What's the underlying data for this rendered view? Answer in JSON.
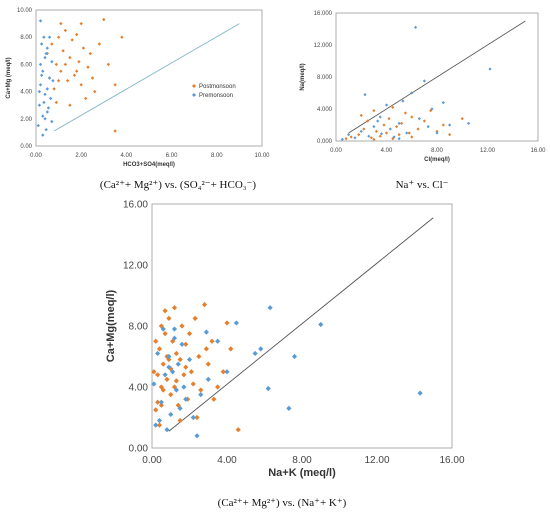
{
  "colors": {
    "postmonsoon": "#E57F2C",
    "premonsoon": "#5B9BD5",
    "line": "#555555",
    "border": "#999999"
  },
  "captions": {
    "chart1": "(Ca²⁺+ Mg²⁺) vs. (SO₄²⁻+ HCO₃⁻)",
    "chart2": "Na⁺ vs. Cl⁻",
    "chart3": "(Ca²⁺+ Mg²⁺) vs. (Na⁺+ K⁺)"
  },
  "chart_data": [
    {
      "type": "scatter",
      "title": "",
      "xlabel": "HCO3+SO4(meq/l)",
      "ylabel": "Ca+Mg (meq/l)",
      "xlim": [
        0,
        10
      ],
      "ylim": [
        0,
        10
      ],
      "xticks": [
        "0.00",
        "2.00",
        "4.00",
        "6.00",
        "8.00",
        "10.00"
      ],
      "yticks": [
        "0.00",
        "2.00",
        "4.00",
        "6.00",
        "8.00",
        "10.00"
      ],
      "legend": "right",
      "line": [
        [
          0.8,
          1.1
        ],
        [
          9,
          9
        ]
      ],
      "series": [
        {
          "name": "Postmonsoon",
          "points": [
            [
              0.5,
              6.8
            ],
            [
              0.6,
              5.0
            ],
            [
              0.7,
              7.5
            ],
            [
              0.8,
              4.2
            ],
            [
              0.9,
              6.0
            ],
            [
              1.0,
              8.0
            ],
            [
              1.1,
              5.5
            ],
            [
              1.2,
              7.0
            ],
            [
              1.3,
              8.5
            ],
            [
              1.4,
              4.8
            ],
            [
              1.5,
              6.5
            ],
            [
              1.6,
              7.8
            ],
            [
              1.7,
              5.2
            ],
            [
              1.8,
              8.2
            ],
            [
              1.9,
              6.2
            ],
            [
              2.0,
              4.5
            ],
            [
              2.1,
              7.2
            ],
            [
              2.2,
              3.5
            ],
            [
              2.3,
              5.8
            ],
            [
              2.4,
              6.8
            ],
            [
              2.6,
              4.0
            ],
            [
              2.8,
              7.5
            ],
            [
              3.0,
              9.3
            ],
            [
              3.2,
              6.0
            ],
            [
              3.5,
              4.5
            ],
            [
              3.5,
              1.1
            ],
            [
              3.8,
              8.0
            ],
            [
              0.9,
              3.2
            ],
            [
              1.1,
              9.0
            ],
            [
              1.5,
              3.0
            ],
            [
              2.0,
              9.0
            ],
            [
              2.5,
              5.0
            ],
            [
              1.0,
              4.8
            ],
            [
              1.3,
              6.0
            ],
            [
              1.8,
              5.5
            ]
          ]
        },
        {
          "name": "Premonsoon",
          "points": [
            [
              0.1,
              1.5
            ],
            [
              0.15,
              3.0
            ],
            [
              0.2,
              4.5
            ],
            [
              0.2,
              6.0
            ],
            [
              0.25,
              7.5
            ],
            [
              0.3,
              2.2
            ],
            [
              0.3,
              5.5
            ],
            [
              0.35,
              8.0
            ],
            [
              0.4,
              3.8
            ],
            [
              0.4,
              6.5
            ],
            [
              0.45,
              1.2
            ],
            [
              0.5,
              4.2
            ],
            [
              0.5,
              7.2
            ],
            [
              0.55,
              2.8
            ],
            [
              0.6,
              5.0
            ],
            [
              0.6,
              8.0
            ],
            [
              0.65,
              3.5
            ],
            [
              0.7,
              6.2
            ],
            [
              0.7,
              1.8
            ],
            [
              0.75,
              4.8
            ],
            [
              0.2,
              9.2
            ],
            [
              0.3,
              0.8
            ],
            [
              0.4,
              2.0
            ],
            [
              0.25,
              5.2
            ],
            [
              0.35,
              3.2
            ],
            [
              0.45,
              6.8
            ],
            [
              0.15,
              4.0
            ],
            [
              0.5,
              2.5
            ]
          ]
        }
      ]
    },
    {
      "type": "scatter",
      "title": "",
      "xlabel": "Cl(meq/l)",
      "ylabel": "Na(meq/l)",
      "xlim": [
        0,
        16
      ],
      "ylim": [
        0,
        16
      ],
      "xticks": [
        "0.00",
        "4.00",
        "8.00",
        "12.00",
        "16.00"
      ],
      "yticks": [
        "0.000",
        "4.000",
        "8.000",
        "12.000",
        "16.000"
      ],
      "line": [
        [
          1.0,
          1.0
        ],
        [
          15,
          15
        ]
      ],
      "series": [
        {
          "name": "Postmonsoon",
          "points": [
            [
              0.8,
              0.3
            ],
            [
              1.2,
              0.5
            ],
            [
              1.8,
              0.8
            ],
            [
              2.2,
              1.5
            ],
            [
              2.5,
              2.5
            ],
            [
              2.8,
              0.4
            ],
            [
              3.0,
              3.8
            ],
            [
              3.2,
              1.2
            ],
            [
              3.5,
              0.6
            ],
            [
              3.8,
              2.0
            ],
            [
              4.0,
              1.0
            ],
            [
              4.2,
              2.8
            ],
            [
              4.5,
              0.3
            ],
            [
              4.8,
              1.8
            ],
            [
              5.0,
              0.8
            ],
            [
              5.2,
              2.2
            ],
            [
              5.5,
              3.5
            ],
            [
              5.8,
              1.0
            ],
            [
              6.0,
              0.5
            ],
            [
              6.5,
              1.5
            ],
            [
              7.0,
              2.5
            ],
            [
              7.5,
              3.8
            ],
            [
              8.0,
              1.2
            ],
            [
              8.5,
              2.0
            ],
            [
              9.0,
              0.8
            ],
            [
              10.0,
              2.8
            ],
            [
              2.0,
              3.2
            ],
            [
              4.5,
              4.2
            ],
            [
              6.0,
              3.0
            ],
            [
              3.0,
              0.2
            ]
          ]
        },
        {
          "name": "Premonsoon",
          "points": [
            [
              0.5,
              0.2
            ],
            [
              1.0,
              0.8
            ],
            [
              1.5,
              0.4
            ],
            [
              2.0,
              1.2
            ],
            [
              2.3,
              5.8
            ],
            [
              2.6,
              0.6
            ],
            [
              3.0,
              1.8
            ],
            [
              3.3,
              2.5
            ],
            [
              3.6,
              0.9
            ],
            [
              4.0,
              4.5
            ],
            [
              4.3,
              1.5
            ],
            [
              4.6,
              0.5
            ],
            [
              5.0,
              2.2
            ],
            [
              5.3,
              5.0
            ],
            [
              5.6,
              1.0
            ],
            [
              6.0,
              6.0
            ],
            [
              6.3,
              14.2
            ],
            [
              6.6,
              2.8
            ],
            [
              7.0,
              7.5
            ],
            [
              7.3,
              1.8
            ],
            [
              7.6,
              4.0
            ],
            [
              8.0,
              1.0
            ],
            [
              8.5,
              4.8
            ],
            [
              9.0,
              2.0
            ],
            [
              10.5,
              2.2
            ],
            [
              12.2,
              9.0
            ],
            [
              5.0,
              0.3
            ],
            [
              3.5,
              3.0
            ]
          ]
        }
      ]
    },
    {
      "type": "scatter",
      "title": "",
      "xlabel": "Na+K  (meq/l)",
      "ylabel": "Ca+Mg(meq/l)",
      "xlim": [
        0,
        16
      ],
      "ylim": [
        0,
        16
      ],
      "xticks": [
        "0.00",
        "4.00",
        "8.00",
        "12.00",
        "16.00"
      ],
      "yticks": [
        "0.00",
        "4.00",
        "8.00",
        "12.00",
        "16.00"
      ],
      "line": [
        [
          0.9,
          1.1
        ],
        [
          15,
          15.1
        ]
      ],
      "series": [
        {
          "name": "Postmonsoon",
          "points": [
            [
              0.1,
              5.0
            ],
            [
              0.2,
              7.0
            ],
            [
              0.3,
              3.0
            ],
            [
              0.3,
              4.8
            ],
            [
              0.4,
              6.5
            ],
            [
              0.5,
              8.0
            ],
            [
              0.5,
              2.8
            ],
            [
              0.6,
              5.5
            ],
            [
              0.6,
              3.8
            ],
            [
              0.7,
              7.5
            ],
            [
              0.8,
              4.5
            ],
            [
              0.8,
              6.0
            ],
            [
              0.9,
              8.5
            ],
            [
              1.0,
              3.5
            ],
            [
              1.0,
              5.2
            ],
            [
              1.1,
              7.0
            ],
            [
              1.2,
              4.0
            ],
            [
              1.2,
              9.2
            ],
            [
              1.3,
              6.2
            ],
            [
              1.4,
              2.8
            ],
            [
              1.5,
              5.8
            ],
            [
              1.6,
              8.0
            ],
            [
              1.7,
              4.8
            ],
            [
              1.8,
              6.8
            ],
            [
              1.9,
              3.2
            ],
            [
              2.0,
              7.5
            ],
            [
              2.1,
              5.0
            ],
            [
              2.2,
              4.2
            ],
            [
              2.3,
              8.5
            ],
            [
              2.5,
              6.0
            ],
            [
              2.6,
              3.8
            ],
            [
              2.8,
              9.4
            ],
            [
              3.0,
              5.5
            ],
            [
              3.2,
              7.0
            ],
            [
              3.5,
              4.0
            ],
            [
              3.8,
              5.0
            ],
            [
              4.0,
              8.2
            ],
            [
              4.2,
              6.5
            ],
            [
              4.6,
              1.2
            ],
            [
              0.2,
              2.5
            ],
            [
              0.4,
              1.5
            ],
            [
              0.7,
              9.0
            ],
            [
              1.5,
              1.8
            ],
            [
              2.4,
              2.0
            ],
            [
              3.3,
              3.2
            ],
            [
              0.9,
              5.8
            ],
            [
              1.3,
              4.4
            ],
            [
              1.8,
              5.3
            ],
            [
              0.5,
              4.0
            ],
            [
              2.9,
              6.5
            ]
          ]
        },
        {
          "name": "Premonsoon",
          "points": [
            [
              0.1,
              4.2
            ],
            [
              0.2,
              1.5
            ],
            [
              0.3,
              6.2
            ],
            [
              0.4,
              1.8
            ],
            [
              0.5,
              3.0
            ],
            [
              0.6,
              7.8
            ],
            [
              0.7,
              4.8
            ],
            [
              0.8,
              1.2
            ],
            [
              0.9,
              6.0
            ],
            [
              1.0,
              2.2
            ],
            [
              1.1,
              5.0
            ],
            [
              1.2,
              7.2
            ],
            [
              1.3,
              3.8
            ],
            [
              1.4,
              5.5
            ],
            [
              1.5,
              2.6
            ],
            [
              1.6,
              6.8
            ],
            [
              1.7,
              4.0
            ],
            [
              1.8,
              3.2
            ],
            [
              2.0,
              5.8
            ],
            [
              2.2,
              2.0
            ],
            [
              2.4,
              0.8
            ],
            [
              2.6,
              3.5
            ],
            [
              3.0,
              4.5
            ],
            [
              3.5,
              7.0
            ],
            [
              4.0,
              5.0
            ],
            [
              4.5,
              8.2
            ],
            [
              5.5,
              6.2
            ],
            [
              5.8,
              6.5
            ],
            [
              6.2,
              3.9
            ],
            [
              6.3,
              9.2
            ],
            [
              7.3,
              2.6
            ],
            [
              7.6,
              6.0
            ],
            [
              9.0,
              8.1
            ],
            [
              14.3,
              3.6
            ],
            [
              1.2,
              7.8
            ],
            [
              0.9,
              5.3
            ],
            [
              2.9,
              7.6
            ]
          ]
        }
      ]
    }
  ]
}
